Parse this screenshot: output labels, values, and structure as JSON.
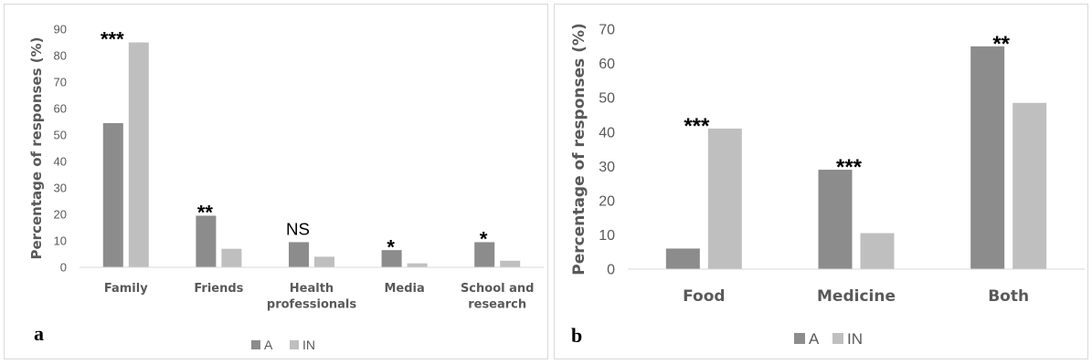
{
  "chart_data": [
    {
      "panel_label": "a",
      "type": "bar",
      "categories": [
        "Family",
        "Friends",
        "Health professionals",
        "Media",
        "School and research"
      ],
      "series": [
        {
          "name": "A",
          "values": [
            54.5,
            19.5,
            9.5,
            6.5,
            9.5
          ]
        },
        {
          "name": "IN",
          "values": [
            85,
            7,
            4,
            1.5,
            2.5
          ]
        }
      ],
      "annotations": [
        "***",
        "**",
        "NS",
        "*",
        "*"
      ],
      "ylabel": "Percentage of responses (%)",
      "xlabel": "",
      "ylim": [
        0,
        90
      ],
      "yticks": [
        "0",
        "10",
        "20",
        "30",
        "40",
        "50",
        "60",
        "70",
        "80",
        "90"
      ],
      "grid": false,
      "legend": "bottom-center"
    },
    {
      "panel_label": "b",
      "type": "bar",
      "categories": [
        "Food",
        "Medicine",
        "Both"
      ],
      "series": [
        {
          "name": "A",
          "values": [
            6,
            29,
            65
          ]
        },
        {
          "name": "IN",
          "values": [
            41,
            10.5,
            48.5
          ]
        }
      ],
      "annotations": [
        "***",
        "***",
        "**"
      ],
      "ylabel": "Percentage of responses (%)",
      "xlabel": "",
      "ylim": [
        0,
        70
      ],
      "yticks": [
        "0",
        "10",
        "20",
        "30",
        "40",
        "50",
        "60",
        "70"
      ],
      "grid": false,
      "legend": "bottom-center"
    }
  ],
  "colors": {
    "A": "#8c8c8c",
    "IN": "#bfbfbf",
    "axis": "#d9d9d9",
    "tick_text": "#595959",
    "label_text": "#595959",
    "annotation_text": "#000000"
  },
  "category_lines": {
    "a": [
      [
        "Family"
      ],
      [
        "Friends"
      ],
      [
        "Health",
        "professionals"
      ],
      [
        "Media"
      ],
      [
        "School and",
        "research"
      ]
    ],
    "b": [
      [
        "Food"
      ],
      [
        "Medicine"
      ],
      [
        "Both"
      ]
    ]
  }
}
